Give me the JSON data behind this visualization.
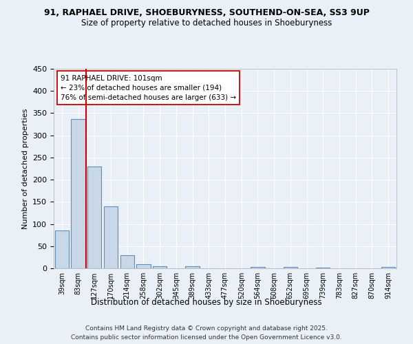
{
  "title1": "91, RAPHAEL DRIVE, SHOEBURYNESS, SOUTHEND-ON-SEA, SS3 9UP",
  "title2": "Size of property relative to detached houses in Shoeburyness",
  "xlabel": "Distribution of detached houses by size in Shoeburyness",
  "ylabel": "Number of detached properties",
  "categories": [
    "39sqm",
    "83sqm",
    "127sqm",
    "170sqm",
    "214sqm",
    "258sqm",
    "302sqm",
    "345sqm",
    "389sqm",
    "433sqm",
    "477sqm",
    "520sqm",
    "564sqm",
    "608sqm",
    "652sqm",
    "695sqm",
    "739sqm",
    "783sqm",
    "827sqm",
    "870sqm",
    "914sqm"
  ],
  "values": [
    85,
    337,
    230,
    139,
    30,
    10,
    5,
    0,
    4,
    0,
    0,
    0,
    3,
    0,
    3,
    0,
    2,
    0,
    0,
    0,
    3
  ],
  "bar_color": "#c8d8e8",
  "bar_edge_color": "#5b8db8",
  "ylim": [
    0,
    450
  ],
  "yticks": [
    0,
    50,
    100,
    150,
    200,
    250,
    300,
    350,
    400,
    450
  ],
  "vline_x": 1.5,
  "vline_color": "#cc0000",
  "annotation_text": "91 RAPHAEL DRIVE: 101sqm\n← 23% of detached houses are smaller (194)\n76% of semi-detached houses are larger (633) →",
  "annotation_box_color": "#ffffff",
  "annotation_box_edge_color": "#cc0000",
  "footer1": "Contains HM Land Registry data © Crown copyright and database right 2025.",
  "footer2": "Contains public sector information licensed under the Open Government Licence v3.0.",
  "bg_color": "#eaf0f8",
  "plot_bg_color": "#eaf0f8"
}
